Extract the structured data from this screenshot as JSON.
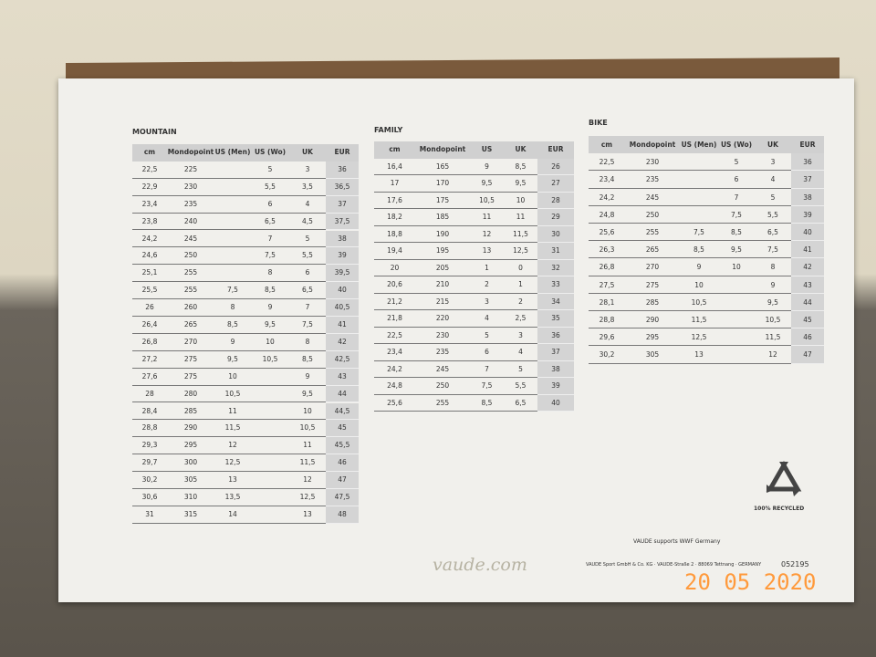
{
  "mountain": {
    "title": "MOUNTAIN",
    "columns": [
      "cm",
      "Mondopoint",
      "US (Men)",
      "US (Wo)",
      "UK",
      "EUR"
    ],
    "rows": [
      [
        "22,5",
        "225",
        null,
        "5",
        "3",
        "36"
      ],
      [
        "22,9",
        "230",
        null,
        "5,5",
        "3,5",
        "36,5"
      ],
      [
        "23,4",
        "235",
        null,
        "6",
        "4",
        "37"
      ],
      [
        "23,8",
        "240",
        null,
        "6,5",
        "4,5",
        "37,5"
      ],
      [
        "24,2",
        "245",
        null,
        "7",
        "5",
        "38"
      ],
      [
        "24,6",
        "250",
        null,
        "7,5",
        "5,5",
        "39"
      ],
      [
        "25,1",
        "255",
        null,
        "8",
        "6",
        "39,5"
      ],
      [
        "25,5",
        "255",
        "7,5",
        "8,5",
        "6,5",
        "40"
      ],
      [
        "26",
        "260",
        "8",
        "9",
        "7",
        "40,5"
      ],
      [
        "26,4",
        "265",
        "8,5",
        "9,5",
        "7,5",
        "41"
      ],
      [
        "26,8",
        "270",
        "9",
        "10",
        "8",
        "42"
      ],
      [
        "27,2",
        "275",
        "9,5",
        "10,5",
        "8,5",
        "42,5"
      ],
      [
        "27,6",
        "275",
        "10",
        null,
        "9",
        "43"
      ],
      [
        "28",
        "280",
        "10,5",
        null,
        "9,5",
        "44"
      ],
      [
        "28,4",
        "285",
        "11",
        null,
        "10",
        "44,5"
      ],
      [
        "28,8",
        "290",
        "11,5",
        null,
        "10,5",
        "45"
      ],
      [
        "29,3",
        "295",
        "12",
        null,
        "11",
        "45,5"
      ],
      [
        "29,7",
        "300",
        "12,5",
        null,
        "11,5",
        "46"
      ],
      [
        "30,2",
        "305",
        "13",
        null,
        "12",
        "47"
      ],
      [
        "30,6",
        "310",
        "13,5",
        null,
        "12,5",
        "47,5"
      ],
      [
        "31",
        "315",
        "14",
        null,
        "13",
        "48"
      ]
    ]
  },
  "family": {
    "title": "FAMILY",
    "columns": [
      "cm",
      "Mondopoint",
      "US",
      "UK",
      "EUR"
    ],
    "rows": [
      [
        "16,4",
        "165",
        "9",
        "8,5",
        "26"
      ],
      [
        "17",
        "170",
        "9,5",
        "9,5",
        "27"
      ],
      [
        "17,6",
        "175",
        "10,5",
        "10",
        "28"
      ],
      [
        "18,2",
        "185",
        "11",
        "11",
        "29"
      ],
      [
        "18,8",
        "190",
        "12",
        "11,5",
        "30"
      ],
      [
        "19,4",
        "195",
        "13",
        "12,5",
        "31"
      ],
      [
        "20",
        "205",
        "1",
        "0",
        "32"
      ],
      [
        "20,6",
        "210",
        "2",
        "1",
        "33"
      ],
      [
        "21,2",
        "215",
        "3",
        "2",
        "34"
      ],
      [
        "21,8",
        "220",
        "4",
        "2,5",
        "35"
      ],
      [
        "22,5",
        "230",
        "5",
        "3",
        "36"
      ],
      [
        "23,4",
        "235",
        "6",
        "4",
        "37"
      ],
      [
        "24,2",
        "245",
        "7",
        "5",
        "38"
      ],
      [
        "24,8",
        "250",
        "7,5",
        "5,5",
        "39"
      ],
      [
        "25,6",
        "255",
        "8,5",
        "6,5",
        "40"
      ]
    ]
  },
  "bike": {
    "title": "BIKE",
    "columns": [
      "cm",
      "Mondopoint",
      "US (Men)",
      "US (Wo)",
      "UK",
      "EUR"
    ],
    "rows": [
      [
        "22,5",
        "230",
        null,
        "5",
        "3",
        "36"
      ],
      [
        "23,4",
        "235",
        null,
        "6",
        "4",
        "37"
      ],
      [
        "24,2",
        "245",
        null,
        "7",
        "5",
        "38"
      ],
      [
        "24,8",
        "250",
        null,
        "7,5",
        "5,5",
        "39"
      ],
      [
        "25,6",
        "255",
        "7,5",
        "8,5",
        "6,5",
        "40"
      ],
      [
        "26,3",
        "265",
        "8,5",
        "9,5",
        "7,5",
        "41"
      ],
      [
        "26,8",
        "270",
        "9",
        "10",
        "8",
        "42"
      ],
      [
        "27,5",
        "275",
        "10",
        null,
        "9",
        "43"
      ],
      [
        "28,1",
        "285",
        "10,5",
        null,
        "9,5",
        "44"
      ],
      [
        "28,8",
        "290",
        "11,5",
        null,
        "10,5",
        "45"
      ],
      [
        "29,6",
        "295",
        "12,5",
        null,
        "11,5",
        "46"
      ],
      [
        "30,2",
        "305",
        "13",
        null,
        "12",
        "47"
      ]
    ]
  },
  "recycled": "100% RECYCLED",
  "wwf": "VAUDE supports WWF Germany",
  "website": "vaude.com",
  "address": "VAUDE Sport GmbH & Co. KG · VAUDE-Straße 2 · 88069 Tettnang · GERMANY",
  "code": "052195",
  "date_stamp": "20 05 2020"
}
